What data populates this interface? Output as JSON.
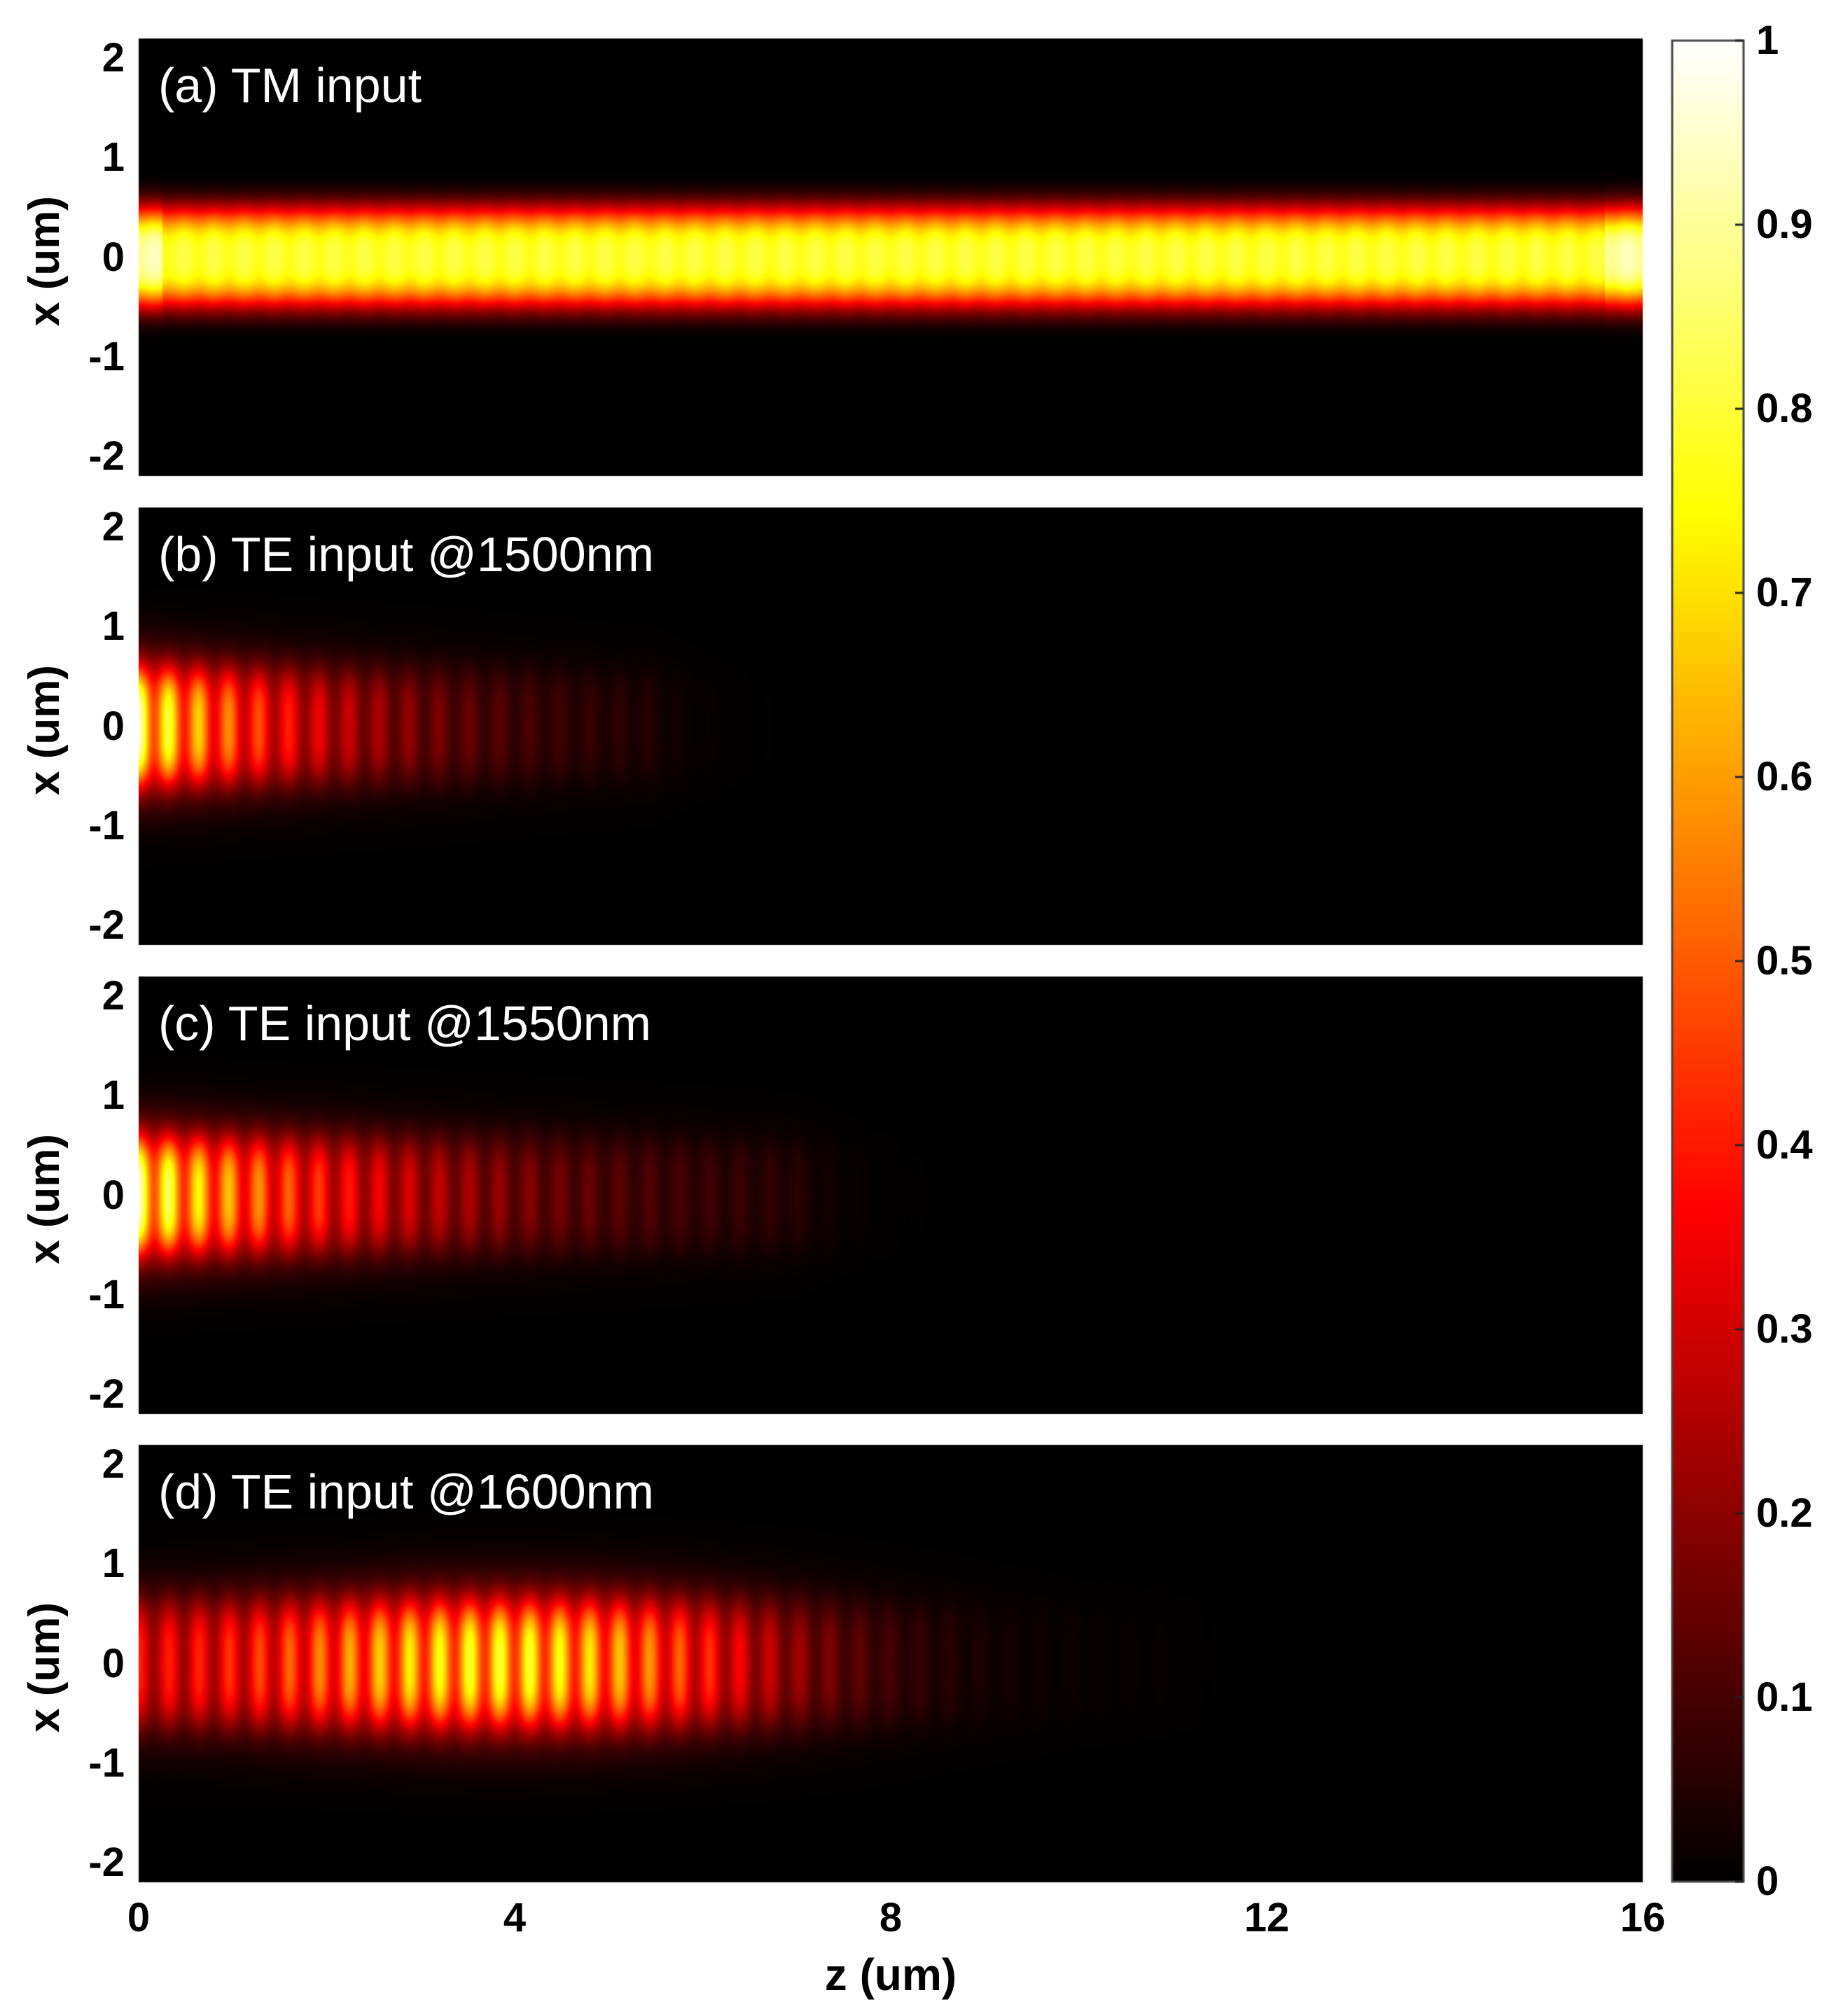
{
  "chart_data": [
    {
      "type": "heatmap",
      "panel_label": "(a) TM input",
      "ylabel": "x (um)",
      "y_ticks": [
        "2",
        "1",
        "0",
        "-1",
        "-2"
      ],
      "ylim": [
        -2.2,
        2.2
      ],
      "xlim": [
        0,
        16
      ],
      "mode": {
        "kind": "uniform",
        "center_x": 0,
        "half_width": 0.5,
        "peak": 0.82,
        "z_extent": 16,
        "period": 0.32,
        "ripple": 0.06
      }
    },
    {
      "type": "heatmap",
      "panel_label": "(b) TE input @1500nm",
      "ylabel": "x (um)",
      "y_ticks": [
        "2",
        "1",
        "0",
        "-1",
        "-2"
      ],
      "ylim": [
        -2.2,
        2.2
      ],
      "xlim": [
        0,
        16
      ],
      "mode": {
        "kind": "decay",
        "center_x": 0,
        "half_width": 0.55,
        "peak": 0.95,
        "decay_length": 1.9,
        "z_extent": 5.5,
        "period": 0.32
      }
    },
    {
      "type": "heatmap",
      "panel_label": "(c) TE input @1550nm",
      "ylabel": "x (um)",
      "y_ticks": [
        "2",
        "1",
        "0",
        "-1",
        "-2"
      ],
      "ylim": [
        -2.2,
        2.2
      ],
      "xlim": [
        0,
        16
      ],
      "mode": {
        "kind": "decay",
        "center_x": 0,
        "half_width": 0.55,
        "peak": 0.95,
        "decay_length": 2.6,
        "z_extent": 7,
        "period": 0.32
      }
    },
    {
      "type": "heatmap",
      "panel_label": "(d) TE input @1600nm",
      "ylabel": "x (um)",
      "y_ticks": [
        "2",
        "1",
        "0",
        "-1",
        "-2"
      ],
      "ylim": [
        -2.2,
        2.2
      ],
      "xlim": [
        0,
        16
      ],
      "mode": {
        "kind": "beat",
        "center_x": 0,
        "half_width": 0.6,
        "peak": 0.95,
        "envelope_peak_z": 4,
        "envelope_sigma": 2.7,
        "z_extent": 11,
        "period": 0.32
      }
    }
  ],
  "x_axis": {
    "xlabel": "z (um)",
    "ticks": [
      "0",
      "4",
      "8",
      "12",
      "16"
    ],
    "values": [
      0,
      4,
      8,
      12,
      16
    ]
  },
  "colorbar": {
    "colormap": "hot",
    "range": [
      0,
      1
    ],
    "ticks": [
      "1",
      "0.9",
      "0.8",
      "0.7",
      "0.6",
      "0.5",
      "0.4",
      "0.3",
      "0.2",
      "0.1",
      "0"
    ],
    "values": [
      1,
      0.9,
      0.8,
      0.7,
      0.6,
      0.5,
      0.4,
      0.3,
      0.2,
      0.1,
      0
    ]
  }
}
